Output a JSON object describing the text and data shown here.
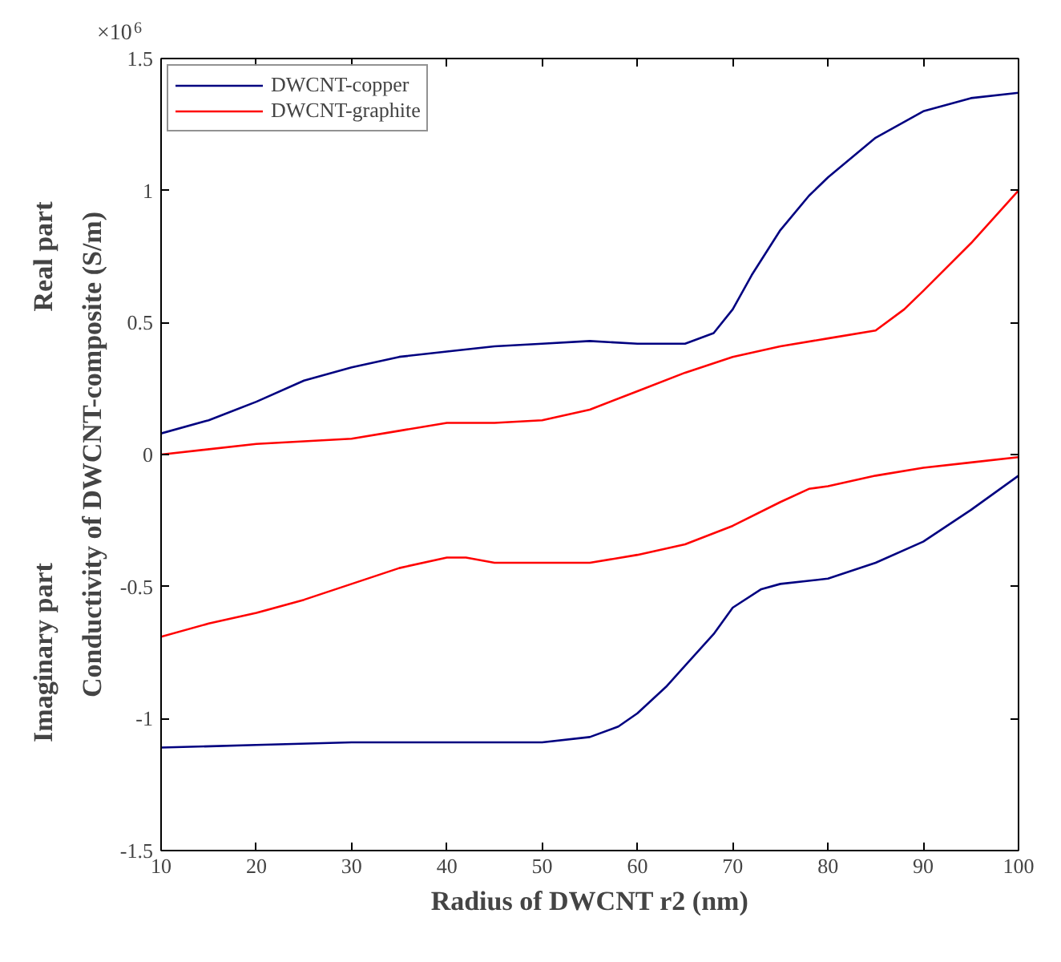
{
  "chart_data": {
    "type": "line",
    "xlabel": "Radius of DWCNT r2 (nm)",
    "ylabel": "Conductivity of DWCNT-composite (S/m)",
    "annotations": [
      "×10$^{6}$",
      "Real part",
      "Imaginary part"
    ],
    "xlim": [
      10,
      100
    ],
    "xticks": [
      10,
      20,
      30,
      40,
      50,
      60,
      70,
      80,
      90,
      100
    ],
    "ylim": [
      -1.5,
      1.5
    ],
    "yticks": [
      -1.5,
      -1,
      -0.5,
      0,
      0.5,
      1,
      1.5
    ],
    "legend": "top left",
    "grid": false,
    "series": [
      {
        "name": "DWCNT-copper",
        "color": "#000080",
        "x": [
          10,
          15,
          20,
          25,
          30,
          35,
          40,
          45,
          50,
          55,
          60,
          65,
          68,
          70,
          72,
          75,
          78,
          80,
          85,
          90,
          95,
          100
        ],
        "values": [
          0.08,
          0.13,
          0.2,
          0.28,
          0.33,
          0.37,
          0.39,
          0.41,
          0.42,
          0.43,
          0.42,
          0.42,
          0.46,
          0.55,
          0.68,
          0.85,
          0.98,
          1.05,
          1.2,
          1.3,
          1.35,
          1.37
        ]
      },
      {
        "name": "DWCNT-graphite",
        "color": "#ff0000",
        "x": [
          10,
          20,
          30,
          35,
          40,
          45,
          50,
          55,
          60,
          65,
          70,
          75,
          80,
          85,
          88,
          90,
          95,
          100
        ],
        "values": [
          0.0,
          0.04,
          0.06,
          0.09,
          0.12,
          0.12,
          0.13,
          0.17,
          0.24,
          0.31,
          0.37,
          0.41,
          0.44,
          0.47,
          0.55,
          0.62,
          0.8,
          1.0
        ]
      },
      {
        "color": "#ff0000",
        "x": [
          10,
          15,
          20,
          25,
          30,
          35,
          40,
          42,
          45,
          50,
          55,
          60,
          65,
          70,
          75,
          78,
          80,
          85,
          90,
          95,
          100
        ],
        "values": [
          -0.69,
          -0.64,
          -0.6,
          -0.55,
          -0.49,
          -0.43,
          -0.39,
          -0.39,
          -0.41,
          -0.41,
          -0.41,
          -0.38,
          -0.34,
          -0.27,
          -0.18,
          -0.13,
          -0.12,
          -0.08,
          -0.05,
          -0.03,
          -0.01
        ]
      },
      {
        "color": "#000080",
        "x": [
          10,
          20,
          30,
          40,
          50,
          55,
          58,
          60,
          63,
          65,
          68,
          70,
          73,
          75,
          80,
          85,
          90,
          95,
          100
        ],
        "values": [
          -1.11,
          -1.1,
          -1.09,
          -1.09,
          -1.09,
          -1.07,
          -1.03,
          -0.98,
          -0.88,
          -0.8,
          -0.68,
          -0.58,
          -0.51,
          -0.49,
          -0.47,
          -0.41,
          -0.33,
          -0.21,
          -0.08
        ]
      }
    ]
  }
}
